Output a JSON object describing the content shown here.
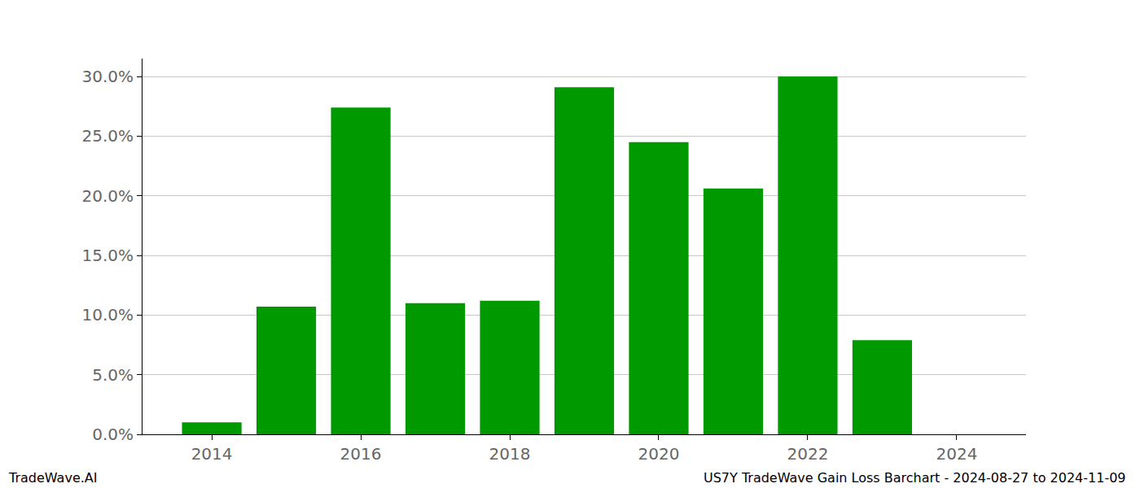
{
  "chart_data": {
    "type": "bar",
    "x": [
      2014,
      2015,
      2016,
      2017,
      2018,
      2019,
      2020,
      2021,
      2022,
      2023
    ],
    "values": [
      1.0,
      10.7,
      27.4,
      11.0,
      11.2,
      29.1,
      24.5,
      20.6,
      30.0,
      7.9
    ],
    "color": "#009900",
    "xlim": [
      2013.07,
      2024.93
    ],
    "xticks": [
      2014,
      2016,
      2018,
      2020,
      2022,
      2024
    ],
    "ylim": [
      0,
      31.5
    ],
    "yticks": [
      {
        "value": 0,
        "label": "0.0%"
      },
      {
        "value": 5,
        "label": "5.0%"
      },
      {
        "value": 10,
        "label": "10.0%"
      },
      {
        "value": 15,
        "label": "15.0%"
      },
      {
        "value": 20,
        "label": "20.0%"
      },
      {
        "value": 25,
        "label": "25.0%"
      },
      {
        "value": 30,
        "label": "30.0%"
      }
    ],
    "grid": true,
    "annotations": [
      "TradeWave.AI",
      "US7Y TradeWave Gain Loss Barchart - 2024-08-27 to 2024-11-09"
    ]
  }
}
